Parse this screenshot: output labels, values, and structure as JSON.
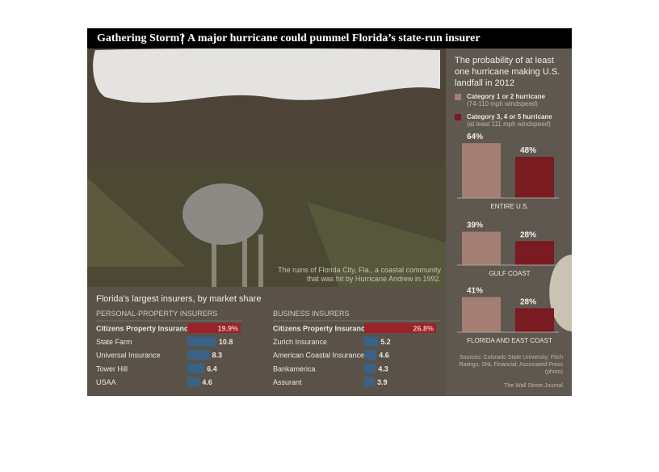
{
  "title": "Gathering Storm?",
  "subtitle": "A major hurricane could pummel Florida’s state-run insurer",
  "photo_caption": "The ruins of Florida City, Fla., a coastal community that was hit by Hurricane Andrew in 1992.",
  "insurers_title": "Florida's largest insurers, by market share",
  "sources": "Sources: Colorado State University; Fitch Ratings; SNL Financial; Associated Press (photo)",
  "credit": "The Wall Street Journal",
  "chart_data": [
    {
      "type": "bar",
      "title": "The probability of at least one hurricane making U.S. landfall in 2012",
      "categories": [
        "ENTIRE U.S.",
        "GULF COAST",
        "FLORIDA AND EAST COAST"
      ],
      "series": [
        {
          "name": "Category 1 or 2 hurricane",
          "description": "(74-110 mph windspeed)",
          "color": "#a47e72",
          "values": [
            64,
            39,
            41
          ],
          "value_labels": [
            "64%",
            "39%",
            "41%"
          ]
        },
        {
          "name": "Category 3, 4 or 5 hurricane",
          "description": "(at least 111 mph windspeed)",
          "color": "#7a1a21",
          "values": [
            48,
            28,
            28
          ],
          "value_labels": [
            "48%",
            "28%",
            "28%"
          ]
        }
      ]
    },
    {
      "type": "hbar",
      "title": "PERSONAL-PROPERTY INSURERS",
      "categories": [
        "Citizens Property Insurance",
        "State Farm",
        "Universal Insurance",
        "Tower Hill",
        "USAA"
      ],
      "values": [
        19.9,
        10.8,
        8.3,
        6.4,
        4.6
      ],
      "value_labels": [
        "19.9%",
        "10.8",
        "8.3",
        "6.4",
        "4.6"
      ],
      "colors": [
        "#9c2229",
        "#3a6186",
        "#3a6186",
        "#3a6186",
        "#3a6186"
      ]
    },
    {
      "type": "hbar",
      "title": "BUSINESS INSURERS",
      "categories": [
        "Citizens Property Insurance",
        "Zurich Insurance",
        "American Coastal Insurance",
        "Bankamerica",
        "Assurant"
      ],
      "values": [
        26.8,
        5.2,
        4.6,
        4.3,
        3.9
      ],
      "value_labels": [
        "26.8%",
        "5.2",
        "4.6",
        "4.3",
        "3.9"
      ],
      "colors": [
        "#9c2229",
        "#3a6186",
        "#3a6186",
        "#3a6186",
        "#3a6186"
      ]
    }
  ]
}
